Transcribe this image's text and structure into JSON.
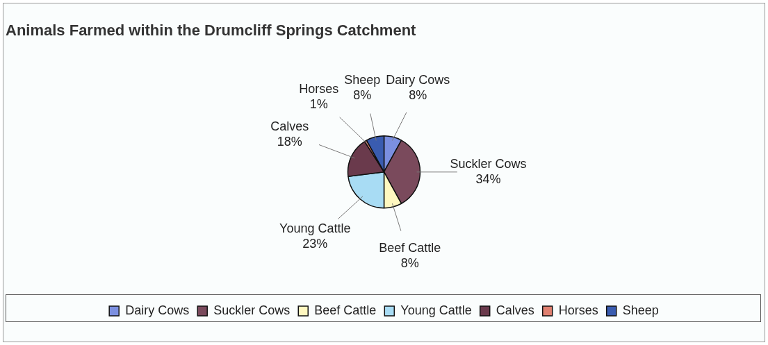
{
  "chart_data": {
    "type": "pie",
    "title": "Animals Farmed within the Drumcliff Springs Catchment",
    "categories": [
      "Dairy Cows",
      "Suckler Cows",
      "Beef Cattle",
      "Young Cattle",
      "Calves",
      "Horses",
      "Sheep"
    ],
    "values": [
      8,
      34,
      8,
      23,
      18,
      1,
      8
    ],
    "value_labels": [
      "8%",
      "34%",
      "8%",
      "23%",
      "18%",
      "1%",
      "8%"
    ],
    "colors": [
      "#7b8fe0",
      "#7a4a5c",
      "#fff8c0",
      "#a8dcf4",
      "#6a3a4c",
      "#e08070",
      "#3a5cb0"
    ],
    "legend": "bottom"
  }
}
